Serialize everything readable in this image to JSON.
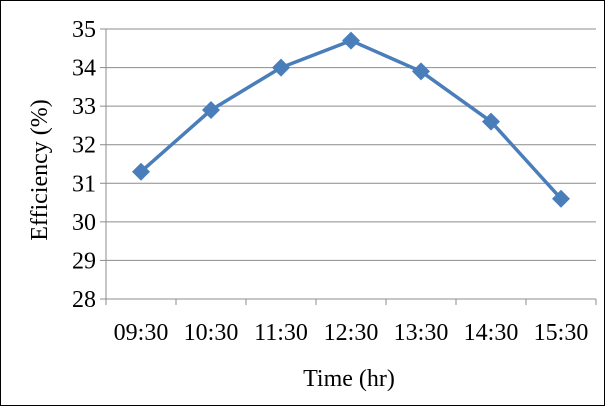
{
  "chart_data": {
    "type": "line",
    "title": "",
    "xlabel": "Time (hr)",
    "ylabel": "Efficiency (%)",
    "categories": [
      "09:30",
      "10:30",
      "11:30",
      "12:30",
      "13:30",
      "14:30",
      "15:30"
    ],
    "series": [
      {
        "values": [
          31.3,
          32.9,
          34.0,
          34.7,
          33.9,
          32.6,
          30.6
        ],
        "color": "#4a7ebb",
        "marker": "diamond"
      }
    ],
    "ylim": [
      28,
      35
    ],
    "yticks": [
      "28",
      "29",
      "30",
      "31",
      "32",
      "33",
      "34",
      "35"
    ],
    "grid": "horizontal",
    "legend": "none"
  }
}
